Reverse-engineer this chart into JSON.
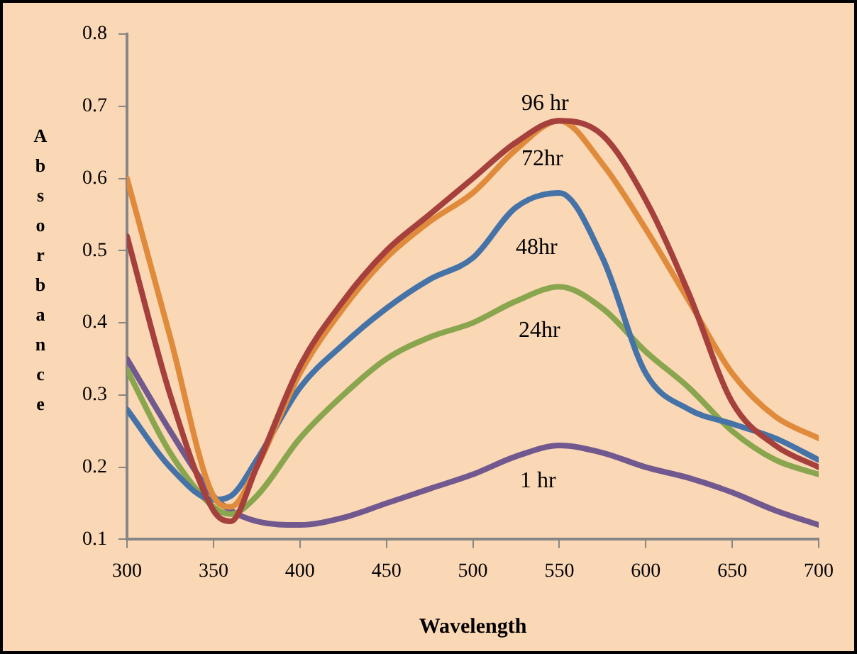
{
  "chart_data": {
    "type": "line",
    "xlabel": "Wavelength",
    "ylabel": "Absorbance",
    "xlim": [
      300,
      700
    ],
    "xticks": [
      300,
      350,
      400,
      450,
      500,
      550,
      600,
      650,
      700
    ],
    "ylim": [
      0.1,
      0.8
    ],
    "yticks": [
      0.1,
      0.2,
      0.3,
      0.4,
      0.5,
      0.6,
      0.7,
      0.8
    ],
    "grid": false,
    "legend": false,
    "marker": "none",
    "line_style": "solid",
    "x": [
      300,
      325,
      350,
      360,
      375,
      400,
      425,
      450,
      475,
      500,
      525,
      550,
      575,
      600,
      625,
      650,
      675,
      700
    ],
    "series": [
      {
        "name": "96 hr",
        "color": "#a5403d",
        "values": [
          0.52,
          0.3,
          0.14,
          0.125,
          0.2,
          0.34,
          0.43,
          0.5,
          0.55,
          0.6,
          0.65,
          0.68,
          0.66,
          0.57,
          0.44,
          0.29,
          0.23,
          0.2
        ]
      },
      {
        "name": "72hr",
        "color": "#e08a3c",
        "values": [
          0.6,
          0.38,
          0.16,
          0.145,
          0.2,
          0.33,
          0.42,
          0.49,
          0.54,
          0.58,
          0.64,
          0.68,
          0.62,
          0.53,
          0.43,
          0.33,
          0.27,
          0.24
        ]
      },
      {
        "name": "48hr",
        "color": "#4572a7",
        "values": [
          0.28,
          0.2,
          0.155,
          0.16,
          0.21,
          0.31,
          0.37,
          0.42,
          0.46,
          0.49,
          0.56,
          0.58,
          0.49,
          0.33,
          0.28,
          0.26,
          0.24,
          0.21
        ]
      },
      {
        "name": "24hr",
        "color": "#89a54e",
        "values": [
          0.335,
          0.22,
          0.145,
          0.135,
          0.16,
          0.24,
          0.3,
          0.35,
          0.38,
          0.4,
          0.43,
          0.45,
          0.42,
          0.36,
          0.31,
          0.25,
          0.21,
          0.19
        ]
      },
      {
        "name": "1 hr",
        "color": "#71588f",
        "values": [
          0.35,
          0.25,
          0.16,
          0.14,
          0.125,
          0.12,
          0.13,
          0.15,
          0.17,
          0.19,
          0.215,
          0.23,
          0.22,
          0.2,
          0.185,
          0.165,
          0.14,
          0.12
        ]
      }
    ]
  }
}
